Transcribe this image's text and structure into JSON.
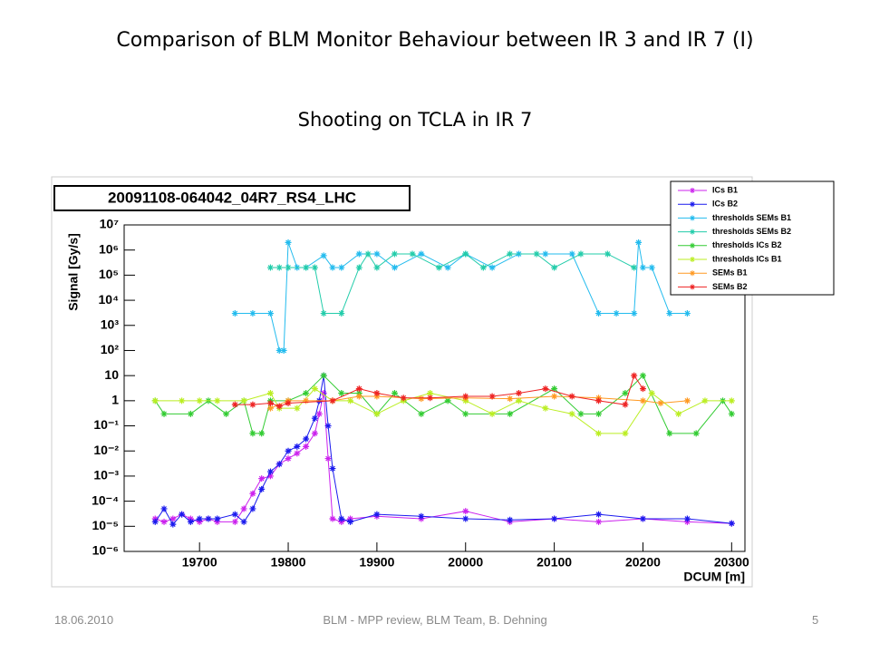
{
  "slide": {
    "title": "Comparison of BLM Monitor Behaviour between IR 3 and IR 7 (I)",
    "subtitle": "Shooting on TCLA in IR 7"
  },
  "footer": {
    "date": "18.06.2010",
    "center": "BLM - MPP review, BLM Team, B. Dehning",
    "page": "5"
  },
  "chart_data": {
    "type": "line",
    "title": "20091108-064042_04R7_RS4_LHC",
    "x_label": "DCUM [m]",
    "y_label": "Signal [Gy/s]",
    "log_y": true,
    "legend": "top-right",
    "xlim": [
      19615,
      20315
    ],
    "xticks": [
      19700,
      19800,
      19900,
      20000,
      20100,
      20200,
      20300
    ],
    "ylim": [
      1e-06,
      10000000
    ],
    "yticks": [
      {
        "value": 1e-06,
        "label": "10⁻⁶"
      },
      {
        "value": 1e-05,
        "label": "10⁻⁵"
      },
      {
        "value": 0.0001,
        "label": "10⁻⁴"
      },
      {
        "value": 0.001,
        "label": "10⁻³"
      },
      {
        "value": 0.01,
        "label": "10⁻²"
      },
      {
        "value": 0.1,
        "label": "10⁻¹"
      },
      1,
      10,
      {
        "value": 100,
        "label": "10²"
      },
      {
        "value": 1000,
        "label": "10³"
      },
      {
        "value": 10000,
        "label": "10⁴"
      },
      {
        "value": 100000,
        "label": "10⁵"
      },
      {
        "value": 1000000,
        "label": "10⁶"
      },
      {
        "value": 10000000,
        "label": "10⁷"
      }
    ],
    "series": [
      {
        "name": "ICs B1",
        "color": "#cc22ee",
        "x": [
          19650,
          19660,
          19670,
          19680,
          19690,
          19700,
          19710,
          19720,
          19740,
          19750,
          19760,
          19770,
          19780,
          19790,
          19800,
          19810,
          19820,
          19830,
          19835,
          19840,
          19845,
          19850,
          19860,
          19870,
          19900,
          19950,
          20000,
          20050,
          20100,
          20150,
          20200,
          20250,
          20300
        ],
        "values": [
          2e-05,
          1.5e-05,
          2e-05,
          3e-05,
          2e-05,
          1.5e-05,
          2e-05,
          1.5e-05,
          1.5e-05,
          5e-05,
          0.0002,
          0.0008,
          0.001,
          0.003,
          0.005,
          0.008,
          0.015,
          0.05,
          0.3,
          2,
          0.005,
          2e-05,
          1.5e-05,
          2e-05,
          2.5e-05,
          2e-05,
          4e-05,
          1.5e-05,
          2e-05,
          1.5e-05,
          2e-05,
          1.5e-05,
          1.3e-05
        ]
      },
      {
        "name": "ICs B2",
        "color": "#1a1aee",
        "x": [
          19650,
          19660,
          19670,
          19680,
          19690,
          19700,
          19710,
          19720,
          19740,
          19750,
          19760,
          19770,
          19780,
          19790,
          19800,
          19810,
          19820,
          19830,
          19835,
          19840,
          19845,
          19850,
          19860,
          19870,
          19900,
          19950,
          20000,
          20050,
          20100,
          20150,
          20200,
          20250,
          20300
        ],
        "values": [
          1.5e-05,
          5e-05,
          1.2e-05,
          3e-05,
          1.5e-05,
          2e-05,
          2e-05,
          2e-05,
          3e-05,
          1.5e-05,
          5e-05,
          0.0003,
          0.0015,
          0.003,
          0.01,
          0.015,
          0.03,
          0.2,
          1,
          10,
          0.1,
          0.002,
          2e-05,
          1.5e-05,
          3e-05,
          2.5e-05,
          2e-05,
          1.8e-05,
          2e-05,
          3e-05,
          2e-05,
          2e-05,
          1.3e-05
        ]
      },
      {
        "name": "thresholds SEMs B1",
        "color": "#22bbee",
        "x": [
          19740,
          19760,
          19780,
          19790,
          19795,
          19800,
          19810,
          19820,
          19840,
          19850,
          19860,
          19880,
          19900,
          19920,
          19950,
          19980,
          20000,
          20030,
          20060,
          20090,
          20120,
          20150,
          20170,
          20190,
          20195,
          20200,
          20210,
          20230,
          20250
        ],
        "values": [
          3000,
          3000,
          3000,
          100,
          100,
          2000000,
          200000,
          200000,
          600000,
          200000,
          200000,
          700000,
          700000,
          200000,
          700000,
          200000,
          700000,
          200000,
          700000,
          700000,
          700000,
          3000,
          3000,
          3000,
          2000000,
          200000,
          200000,
          3000,
          3000
        ]
      },
      {
        "name": "thresholds SEMs B2",
        "color": "#22ccaa",
        "x": [
          19780,
          19790,
          19800,
          19820,
          19830,
          19840,
          19860,
          19880,
          19890,
          19900,
          19920,
          19940,
          19970,
          20000,
          20020,
          20050,
          20080,
          20100,
          20130,
          20160,
          20190
        ],
        "values": [
          200000,
          200000,
          200000,
          200000,
          200000,
          3000,
          3000,
          200000,
          700000,
          200000,
          700000,
          700000,
          200000,
          700000,
          200000,
          700000,
          700000,
          200000,
          700000,
          700000,
          200000
        ]
      },
      {
        "name": "thresholds ICs B2",
        "color": "#33cc33",
        "x": [
          19650,
          19660,
          19690,
          19710,
          19730,
          19750,
          19760,
          19770,
          19780,
          19800,
          19820,
          19840,
          19860,
          19880,
          19900,
          19920,
          19950,
          19980,
          20000,
          20050,
          20100,
          20130,
          20150,
          20180,
          20200,
          20230,
          20260,
          20290,
          20300
        ],
        "values": [
          1,
          0.3,
          0.3,
          1,
          0.3,
          1,
          0.05,
          0.05,
          1,
          1,
          2,
          10,
          2,
          2,
          0.3,
          2,
          0.3,
          1,
          0.3,
          0.3,
          3,
          0.3,
          0.3,
          2,
          10,
          0.05,
          0.05,
          1,
          0.3
        ]
      },
      {
        "name": "thresholds ICs B1",
        "color": "#bbee22",
        "x": [
          19650,
          19680,
          19700,
          19720,
          19750,
          19780,
          19790,
          19810,
          19830,
          19850,
          19870,
          19900,
          19930,
          19960,
          20000,
          20030,
          20060,
          20090,
          20120,
          20150,
          20180,
          20210,
          20240,
          20270,
          20300
        ],
        "values": [
          1,
          1,
          1,
          1,
          1,
          2,
          0.5,
          0.5,
          3,
          1,
          1,
          0.3,
          1,
          2,
          1,
          0.3,
          1,
          0.5,
          0.3,
          0.05,
          0.05,
          2,
          0.3,
          1,
          1
        ]
      },
      {
        "name": "SEMs B1",
        "color": "#ff9922",
        "x": [
          19780,
          19800,
          19820,
          19850,
          19880,
          19900,
          19950,
          20000,
          20050,
          20100,
          20150,
          20200,
          20220,
          20250
        ],
        "values": [
          0.5,
          1,
          1,
          1,
          1.5,
          1.5,
          1.2,
          1.3,
          1.2,
          1.5,
          1.3,
          1,
          0.8,
          1
        ]
      },
      {
        "name": "SEMs B2",
        "color": "#ee2222",
        "x": [
          19740,
          19760,
          19780,
          19790,
          19800,
          19850,
          19880,
          19900,
          19930,
          19960,
          20000,
          20030,
          20060,
          20090,
          20120,
          20150,
          20180,
          20190,
          20200
        ],
        "values": [
          0.7,
          0.7,
          0.8,
          0.6,
          0.8,
          1,
          3,
          2,
          1.3,
          1.3,
          1.5,
          1.5,
          2,
          3,
          1.5,
          1,
          0.7,
          10,
          3
        ]
      }
    ]
  }
}
